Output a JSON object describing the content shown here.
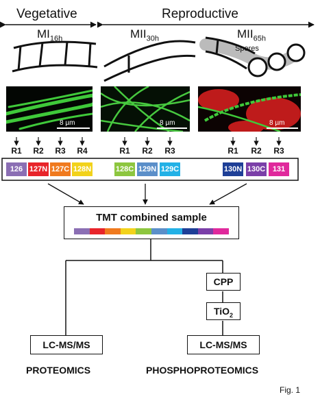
{
  "headers": {
    "vegetative": "Vegetative",
    "reproductive": "Reproductive"
  },
  "stages": [
    {
      "main": "MI",
      "sub": "16h"
    },
    {
      "main": "MII",
      "sub": "30h"
    },
    {
      "main": "MII",
      "sub": "65h"
    }
  ],
  "spores_label": "Spores",
  "scale_bar_label": "8 µm",
  "replicates": {
    "group1": [
      "R1",
      "R2",
      "R3",
      "R4"
    ],
    "group2": [
      "R1",
      "R2",
      "R3"
    ],
    "group3": [
      "R1",
      "R2",
      "R3"
    ]
  },
  "tags": [
    {
      "label": "126",
      "color": "#8b6fb4"
    },
    {
      "label": "127N",
      "color": "#e8242a"
    },
    {
      "label": "127C",
      "color": "#f07a1e"
    },
    {
      "label": "128N",
      "color": "#f2d21b"
    },
    {
      "label": "128C",
      "color": "#8dc63f"
    },
    {
      "label": "129N",
      "color": "#5b8fc9"
    },
    {
      "label": "129C",
      "color": "#23b1e6"
    },
    {
      "label": "130N",
      "color": "#1e3f97"
    },
    {
      "label": "130C",
      "color": "#7b3fa8"
    },
    {
      "label": "131",
      "color": "#e0299c"
    }
  ],
  "combined_sample_label": "TMT combined sample",
  "cpp_label": "CPP",
  "tio2_label": {
    "main": "TiO",
    "sub": "2"
  },
  "lcms_label": "LC-MS/MS",
  "outputs": {
    "proteomics": "PROTEOMICS",
    "phosphoproteomics": "PHOSPHOPROTEOMICS"
  },
  "figure_label": "Fig. 1"
}
